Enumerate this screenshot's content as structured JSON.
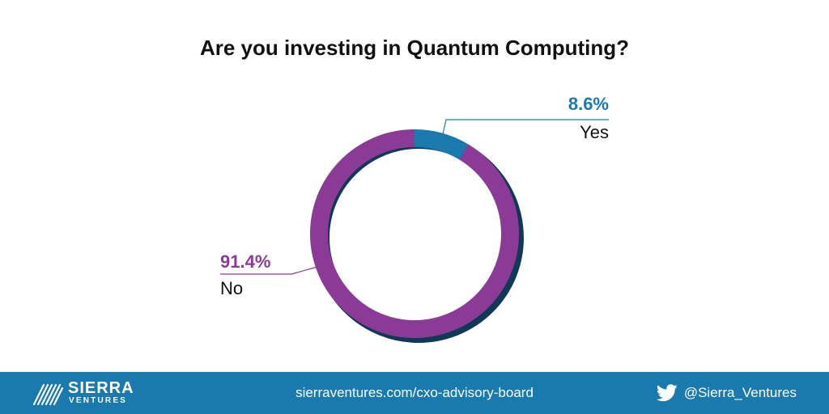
{
  "colors": {
    "no": "#8b3a96",
    "yes": "#1a7aad",
    "shadow": "#0e3a55",
    "footer": "#1a7aad"
  },
  "chart_data": {
    "type": "pie",
    "title": "Are you investing in Quantum Computing?",
    "slices": [
      {
        "label": "Yes",
        "value": 8.6,
        "value_label": "8.6%",
        "color": "#1a7aad"
      },
      {
        "label": "No",
        "value": 91.4,
        "value_label": "91.4%",
        "color": "#8b3a96"
      }
    ],
    "legend": "none"
  },
  "footer": {
    "logo_name": "SIERRA",
    "logo_sub": "VENTURES",
    "url": "sierraventures.com/cxo-advisory-board",
    "twitter_icon": "twitter-bird-icon",
    "twitter_handle": "@Sierra_Ventures"
  }
}
